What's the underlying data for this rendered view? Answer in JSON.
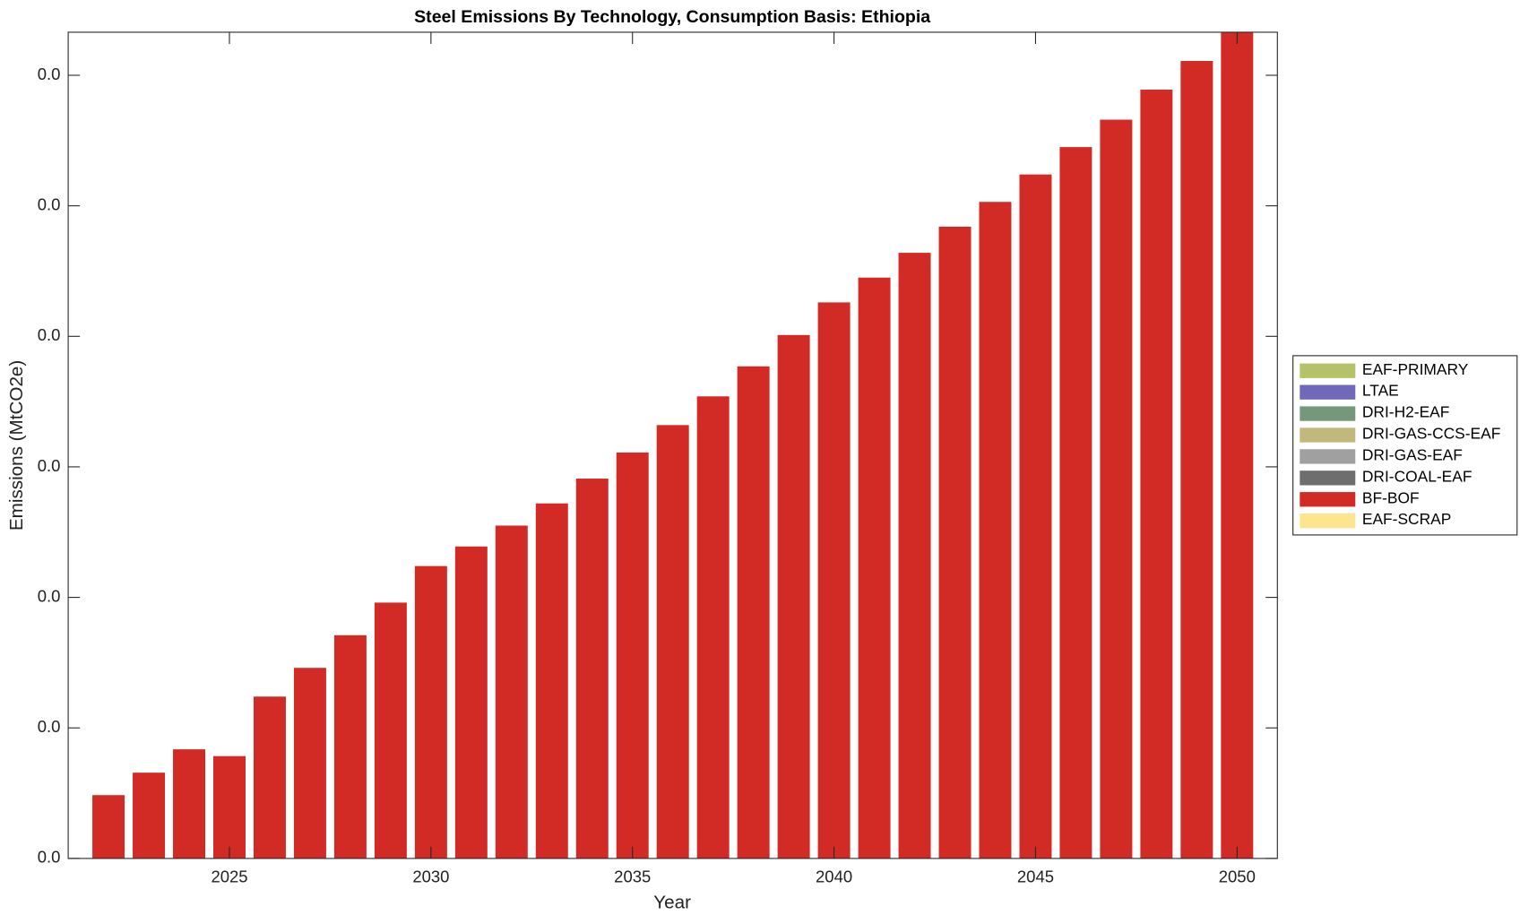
{
  "chart_data": {
    "type": "stacked_bar",
    "title": "Steel Emissions By Technology, Consumption Basis: Ethiopia",
    "x_label": "Year",
    "y_label": "Emissions (MtCO2e)",
    "x": [
      2022,
      2023,
      2024,
      2025,
      2026,
      2027,
      2028,
      2029,
      2030,
      2031,
      2032,
      2033,
      2034,
      2035,
      2036,
      2037,
      2038,
      2039,
      2040,
      2041,
      2042,
      2043,
      2044,
      2045,
      2046,
      2047,
      2048,
      2049,
      2050
    ],
    "xlim": [
      2021,
      2051
    ],
    "xticks": [
      2025,
      2030,
      2035,
      2040,
      2045,
      2050
    ],
    "ylim": [
      0,
      0.00633
    ],
    "yticks": [
      {
        "value": 0,
        "label": "0.0"
      },
      {
        "value": 0.001,
        "label": "0.0"
      },
      {
        "value": 0.002,
        "label": "0.0"
      },
      {
        "value": 0.003,
        "label": "0.0"
      },
      {
        "value": 0.004,
        "label": "0.0"
      },
      {
        "value": 0.005,
        "label": "0.0"
      },
      {
        "value": 0.006,
        "label": "0.0"
      }
    ],
    "grid": false,
    "legend": "outside-right",
    "series": [
      {
        "name": "EAF-PRIMARY",
        "color": "#b5c26a",
        "values": [
          0,
          0,
          0,
          0,
          0,
          0,
          0,
          0,
          0,
          0,
          0,
          0,
          0,
          0,
          0,
          0,
          0,
          0,
          0,
          0,
          0,
          0,
          0,
          0,
          0,
          0,
          0,
          0,
          0
        ]
      },
      {
        "name": "LTAE",
        "color": "#7068b8",
        "values": [
          0,
          0,
          0,
          0,
          0,
          0,
          0,
          0,
          0,
          0,
          0,
          0,
          0,
          0,
          0,
          0,
          0,
          0,
          0,
          0,
          0,
          0,
          0,
          0,
          0,
          0,
          0,
          0,
          0
        ]
      },
      {
        "name": "DRI-H2-EAF",
        "color": "#76987a",
        "values": [
          0,
          0,
          0,
          0,
          0,
          0,
          0,
          0,
          0,
          0,
          0,
          0,
          0,
          0,
          0,
          0,
          0,
          0,
          0,
          0,
          0,
          0,
          0,
          0,
          0,
          0,
          0,
          0,
          0
        ]
      },
      {
        "name": "DRI-GAS-CCS-EAF",
        "color": "#c2b87c",
        "values": [
          0,
          0,
          0,
          0,
          0,
          0,
          0,
          0,
          0,
          0,
          0,
          0,
          0,
          0,
          0,
          0,
          0,
          0,
          0,
          0,
          0,
          0,
          0,
          0,
          0,
          0,
          0,
          0,
          0
        ]
      },
      {
        "name": "DRI-GAS-EAF",
        "color": "#a0a0a0",
        "values": [
          0,
          0,
          0,
          0,
          0,
          0,
          0,
          0,
          0,
          0,
          0,
          0,
          0,
          0,
          0,
          0,
          0,
          0,
          0,
          0,
          0,
          0,
          0,
          0,
          0,
          0,
          0,
          0,
          0
        ]
      },
      {
        "name": "DRI-COAL-EAF",
        "color": "#6e6e6e",
        "values": [
          0,
          0,
          0,
          0,
          0,
          0,
          0,
          0,
          0,
          0,
          0,
          0,
          0,
          0,
          0,
          0,
          0,
          0,
          0,
          0,
          0,
          0,
          0,
          0,
          0,
          0,
          0,
          0,
          0
        ]
      },
      {
        "name": "BF-BOF",
        "color": "#d22b26",
        "values": [
          0.000485,
          0.000657,
          0.000836,
          0.000784,
          0.00124,
          0.00146,
          0.00171,
          0.00196,
          0.00224,
          0.00239,
          0.00255,
          0.00272,
          0.00291,
          0.00311,
          0.00332,
          0.00354,
          0.00377,
          0.00401,
          0.00426,
          0.00445,
          0.00464,
          0.00484,
          0.00503,
          0.00524,
          0.00545,
          0.00566,
          0.00589,
          0.00611,
          0.00633
        ]
      },
      {
        "name": "EAF-SCRAP",
        "color": "#fde58f",
        "values": [
          0,
          0,
          0,
          0,
          0,
          0,
          0,
          0,
          0,
          0,
          0,
          0,
          0,
          0,
          0,
          0,
          0,
          0,
          0,
          0,
          0,
          0,
          0,
          0,
          0,
          0,
          0,
          0,
          0
        ]
      }
    ]
  }
}
